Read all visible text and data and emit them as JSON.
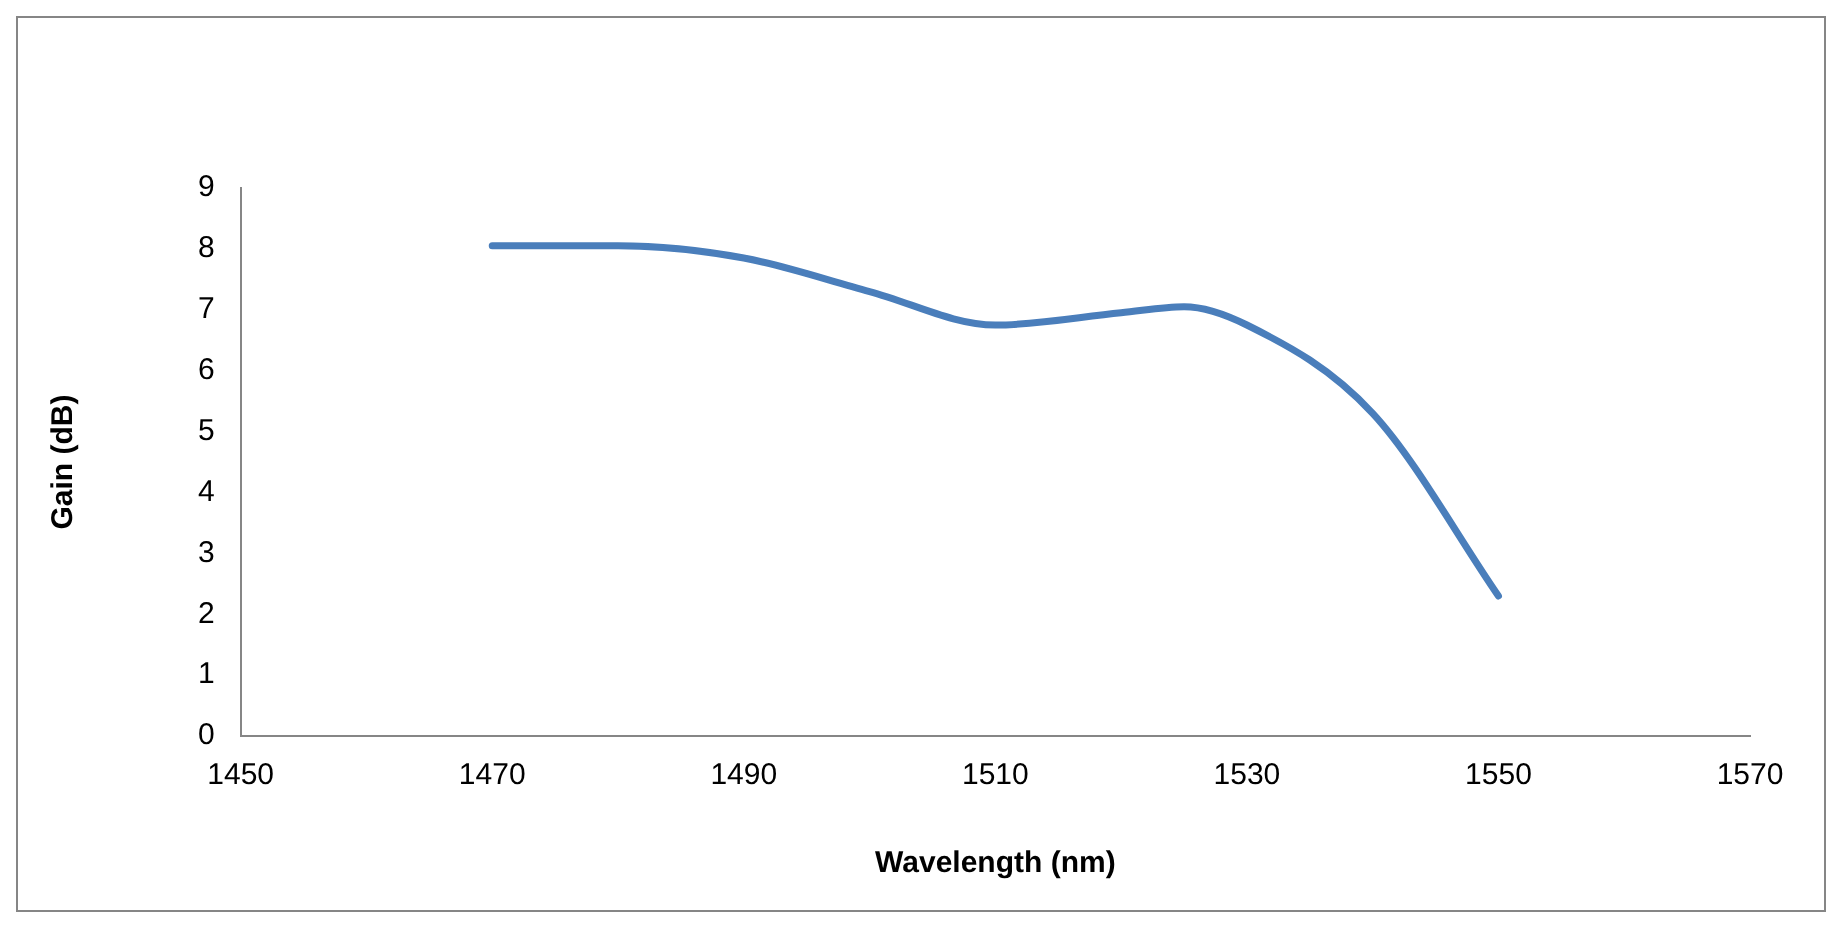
{
  "chart_data": {
    "type": "line",
    "xlabel": "Wavelength (nm)",
    "ylabel": "Gain (dB)",
    "x": [
      1470,
      1480,
      1490,
      1500,
      1510,
      1520,
      1525,
      1530,
      1540,
      1550
    ],
    "series": [
      {
        "color": "#4a7ebb",
        "values": [
          8.05,
          8.05,
          7.85,
          7.3,
          6.75,
          6.95,
          7.05,
          6.75,
          5.3,
          2.3
        ]
      }
    ],
    "xlim": [
      1450,
      1570
    ],
    "xticks": [
      1450,
      1470,
      1490,
      1510,
      1530,
      1550,
      1570
    ],
    "ylim": [
      0,
      9
    ],
    "yticks": [
      0,
      1,
      2,
      3,
      4,
      5,
      6,
      7,
      8,
      9
    ],
    "grid": false,
    "legend": false,
    "marker": "none",
    "line_style": "solid"
  }
}
